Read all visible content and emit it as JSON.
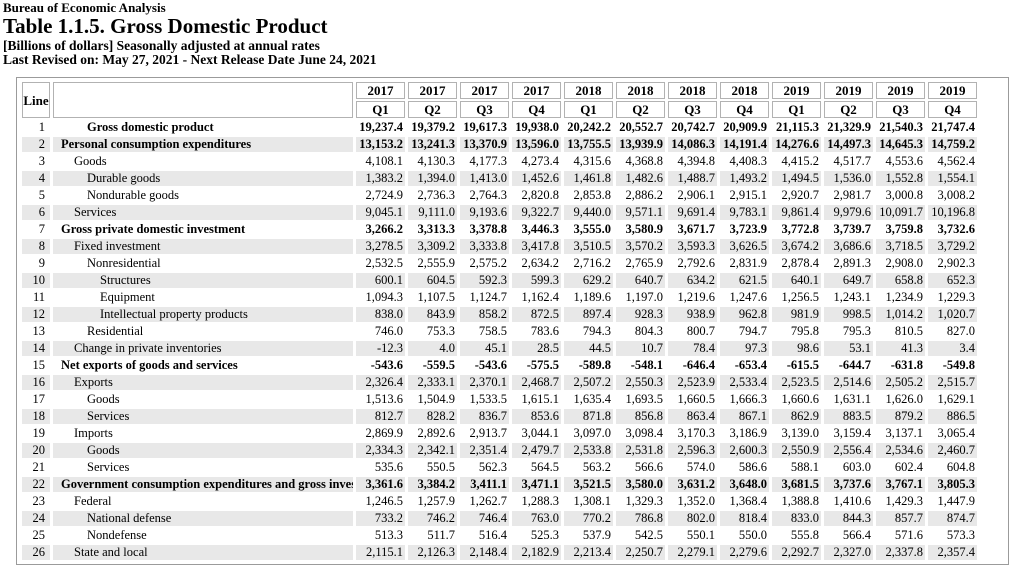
{
  "header": {
    "agency": "Bureau of Economic Analysis",
    "title": "Table 1.1.5. Gross Domestic Product",
    "units_note": "[Billions of dollars] Seasonally adjusted at annual rates",
    "revision_note": "Last Revised on: May 27, 2021 - Next Release Date June 24, 2021"
  },
  "colors": {
    "row_shade": "#e8e8e8",
    "frame_border": "#9b9b9b",
    "header_box_border": "#b2b2b2",
    "text": "#000000",
    "background": "#ffffff"
  },
  "chart_data": {
    "type": "table",
    "title": "Table 1.1.5. Gross Domestic Product",
    "line_column_header": "Line",
    "columns": [
      {
        "year": "2017",
        "quarter": "Q1"
      },
      {
        "year": "2017",
        "quarter": "Q2"
      },
      {
        "year": "2017",
        "quarter": "Q3"
      },
      {
        "year": "2017",
        "quarter": "Q4"
      },
      {
        "year": "2018",
        "quarter": "Q1"
      },
      {
        "year": "2018",
        "quarter": "Q2"
      },
      {
        "year": "2018",
        "quarter": "Q3"
      },
      {
        "year": "2018",
        "quarter": "Q4"
      },
      {
        "year": "2019",
        "quarter": "Q1"
      },
      {
        "year": "2019",
        "quarter": "Q2"
      },
      {
        "year": "2019",
        "quarter": "Q3"
      },
      {
        "year": "2019",
        "quarter": "Q4"
      }
    ],
    "rows": [
      {
        "line": "1",
        "label": "Gross domestic product",
        "indent": 2,
        "bold": true,
        "values": [
          "19,237.4",
          "19,379.2",
          "19,617.3",
          "19,938.0",
          "20,242.2",
          "20,552.7",
          "20,742.7",
          "20,909.9",
          "21,115.3",
          "21,329.9",
          "21,540.3",
          "21,747.4"
        ]
      },
      {
        "line": "2",
        "label": "Personal consumption expenditures",
        "indent": 0,
        "bold": true,
        "values": [
          "13,153.2",
          "13,241.3",
          "13,370.9",
          "13,596.0",
          "13,755.5",
          "13,939.9",
          "14,086.3",
          "14,191.4",
          "14,276.6",
          "14,497.3",
          "14,645.3",
          "14,759.2"
        ]
      },
      {
        "line": "3",
        "label": "Goods",
        "indent": 1,
        "bold": false,
        "values": [
          "4,108.1",
          "4,130.3",
          "4,177.3",
          "4,273.4",
          "4,315.6",
          "4,368.8",
          "4,394.8",
          "4,408.3",
          "4,415.2",
          "4,517.7",
          "4,553.6",
          "4,562.4"
        ]
      },
      {
        "line": "4",
        "label": "Durable goods",
        "indent": 2,
        "bold": false,
        "values": [
          "1,383.2",
          "1,394.0",
          "1,413.0",
          "1,452.6",
          "1,461.8",
          "1,482.6",
          "1,488.7",
          "1,493.2",
          "1,494.5",
          "1,536.0",
          "1,552.8",
          "1,554.1"
        ]
      },
      {
        "line": "5",
        "label": "Nondurable goods",
        "indent": 2,
        "bold": false,
        "values": [
          "2,724.9",
          "2,736.3",
          "2,764.3",
          "2,820.8",
          "2,853.8",
          "2,886.2",
          "2,906.1",
          "2,915.1",
          "2,920.7",
          "2,981.7",
          "3,000.8",
          "3,008.2"
        ]
      },
      {
        "line": "6",
        "label": "Services",
        "indent": 1,
        "bold": false,
        "values": [
          "9,045.1",
          "9,111.0",
          "9,193.6",
          "9,322.7",
          "9,440.0",
          "9,571.1",
          "9,691.4",
          "9,783.1",
          "9,861.4",
          "9,979.6",
          "10,091.7",
          "10,196.8"
        ]
      },
      {
        "line": "7",
        "label": "Gross private domestic investment",
        "indent": 0,
        "bold": true,
        "values": [
          "3,266.2",
          "3,313.3",
          "3,378.8",
          "3,446.3",
          "3,555.0",
          "3,580.9",
          "3,671.7",
          "3,723.9",
          "3,772.8",
          "3,739.7",
          "3,759.8",
          "3,732.6"
        ]
      },
      {
        "line": "8",
        "label": "Fixed investment",
        "indent": 1,
        "bold": false,
        "values": [
          "3,278.5",
          "3,309.2",
          "3,333.8",
          "3,417.8",
          "3,510.5",
          "3,570.2",
          "3,593.3",
          "3,626.5",
          "3,674.2",
          "3,686.6",
          "3,718.5",
          "3,729.2"
        ]
      },
      {
        "line": "9",
        "label": "Nonresidential",
        "indent": 2,
        "bold": false,
        "values": [
          "2,532.5",
          "2,555.9",
          "2,575.2",
          "2,634.2",
          "2,716.2",
          "2,765.9",
          "2,792.6",
          "2,831.9",
          "2,878.4",
          "2,891.3",
          "2,908.0",
          "2,902.3"
        ]
      },
      {
        "line": "10",
        "label": "Structures",
        "indent": 3,
        "bold": false,
        "values": [
          "600.1",
          "604.5",
          "592.3",
          "599.3",
          "629.2",
          "640.7",
          "634.2",
          "621.5",
          "640.1",
          "649.7",
          "658.8",
          "652.3"
        ]
      },
      {
        "line": "11",
        "label": "Equipment",
        "indent": 3,
        "bold": false,
        "values": [
          "1,094.3",
          "1,107.5",
          "1,124.7",
          "1,162.4",
          "1,189.6",
          "1,197.0",
          "1,219.6",
          "1,247.6",
          "1,256.5",
          "1,243.1",
          "1,234.9",
          "1,229.3"
        ]
      },
      {
        "line": "12",
        "label": "Intellectual property products",
        "indent": 3,
        "bold": false,
        "values": [
          "838.0",
          "843.9",
          "858.2",
          "872.5",
          "897.4",
          "928.3",
          "938.9",
          "962.8",
          "981.9",
          "998.5",
          "1,014.2",
          "1,020.7"
        ]
      },
      {
        "line": "13",
        "label": "Residential",
        "indent": 2,
        "bold": false,
        "values": [
          "746.0",
          "753.3",
          "758.5",
          "783.6",
          "794.3",
          "804.3",
          "800.7",
          "794.7",
          "795.8",
          "795.3",
          "810.5",
          "827.0"
        ]
      },
      {
        "line": "14",
        "label": "Change in private inventories",
        "indent": 1,
        "bold": false,
        "values": [
          "-12.3",
          "4.0",
          "45.1",
          "28.5",
          "44.5",
          "10.7",
          "78.4",
          "97.3",
          "98.6",
          "53.1",
          "41.3",
          "3.4"
        ]
      },
      {
        "line": "15",
        "label": "Net exports of goods and services",
        "indent": 0,
        "bold": true,
        "values": [
          "-543.6",
          "-559.5",
          "-543.6",
          "-575.5",
          "-589.8",
          "-548.1",
          "-646.4",
          "-653.4",
          "-615.5",
          "-644.7",
          "-631.8",
          "-549.8"
        ]
      },
      {
        "line": "16",
        "label": "Exports",
        "indent": 1,
        "bold": false,
        "values": [
          "2,326.4",
          "2,333.1",
          "2,370.1",
          "2,468.7",
          "2,507.2",
          "2,550.3",
          "2,523.9",
          "2,533.4",
          "2,523.5",
          "2,514.6",
          "2,505.2",
          "2,515.7"
        ]
      },
      {
        "line": "17",
        "label": "Goods",
        "indent": 2,
        "bold": false,
        "values": [
          "1,513.6",
          "1,504.9",
          "1,533.5",
          "1,615.1",
          "1,635.4",
          "1,693.5",
          "1,660.5",
          "1,666.3",
          "1,660.6",
          "1,631.1",
          "1,626.0",
          "1,629.1"
        ]
      },
      {
        "line": "18",
        "label": "Services",
        "indent": 2,
        "bold": false,
        "values": [
          "812.7",
          "828.2",
          "836.7",
          "853.6",
          "871.8",
          "856.8",
          "863.4",
          "867.1",
          "862.9",
          "883.5",
          "879.2",
          "886.5"
        ]
      },
      {
        "line": "19",
        "label": "Imports",
        "indent": 1,
        "bold": false,
        "values": [
          "2,869.9",
          "2,892.6",
          "2,913.7",
          "3,044.1",
          "3,097.0",
          "3,098.4",
          "3,170.3",
          "3,186.9",
          "3,139.0",
          "3,159.4",
          "3,137.1",
          "3,065.4"
        ]
      },
      {
        "line": "20",
        "label": "Goods",
        "indent": 2,
        "bold": false,
        "values": [
          "2,334.3",
          "2,342.1",
          "2,351.4",
          "2,479.7",
          "2,533.8",
          "2,531.8",
          "2,596.3",
          "2,600.3",
          "2,550.9",
          "2,556.4",
          "2,534.6",
          "2,460.7"
        ]
      },
      {
        "line": "21",
        "label": "Services",
        "indent": 2,
        "bold": false,
        "values": [
          "535.6",
          "550.5",
          "562.3",
          "564.5",
          "563.2",
          "566.6",
          "574.0",
          "586.6",
          "588.1",
          "603.0",
          "602.4",
          "604.8"
        ]
      },
      {
        "line": "22",
        "label": "Government consumption expenditures and gross investment",
        "indent": 0,
        "bold": true,
        "values": [
          "3,361.6",
          "3,384.2",
          "3,411.1",
          "3,471.1",
          "3,521.5",
          "3,580.0",
          "3,631.2",
          "3,648.0",
          "3,681.5",
          "3,737.6",
          "3,767.1",
          "3,805.3"
        ]
      },
      {
        "line": "23",
        "label": "Federal",
        "indent": 1,
        "bold": false,
        "values": [
          "1,246.5",
          "1,257.9",
          "1,262.7",
          "1,288.3",
          "1,308.1",
          "1,329.3",
          "1,352.0",
          "1,368.4",
          "1,388.8",
          "1,410.6",
          "1,429.3",
          "1,447.9"
        ]
      },
      {
        "line": "24",
        "label": "National defense",
        "indent": 2,
        "bold": false,
        "values": [
          "733.2",
          "746.2",
          "746.4",
          "763.0",
          "770.2",
          "786.8",
          "802.0",
          "818.4",
          "833.0",
          "844.3",
          "857.7",
          "874.7"
        ]
      },
      {
        "line": "25",
        "label": "Nondefense",
        "indent": 2,
        "bold": false,
        "values": [
          "513.3",
          "511.7",
          "516.4",
          "525.3",
          "537.9",
          "542.5",
          "550.1",
          "550.0",
          "555.8",
          "566.4",
          "571.6",
          "573.3"
        ]
      },
      {
        "line": "26",
        "label": "State and local",
        "indent": 1,
        "bold": false,
        "values": [
          "2,115.1",
          "2,126.3",
          "2,148.4",
          "2,182.9",
          "2,213.4",
          "2,250.7",
          "2,279.1",
          "2,279.6",
          "2,292.7",
          "2,327.0",
          "2,337.8",
          "2,357.4"
        ]
      }
    ]
  }
}
